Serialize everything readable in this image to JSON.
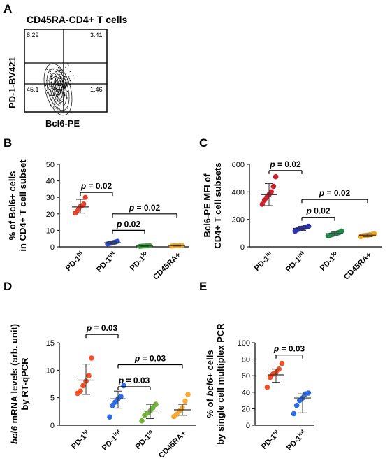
{
  "flow": {
    "panel": "A",
    "title": "CD45RA-CD4+ T cells",
    "ylabel": "PD-1-BV421",
    "xlabel": "Bcl6-PE",
    "quadrants": {
      "top_left": "8.29",
      "top_right": "3.41",
      "bottom_left": "45.1",
      "bottom_right": "1.46"
    }
  },
  "chart_data": [
    {
      "panel": "B",
      "type": "scatter",
      "ylabel_lines": [
        "% of Bcl6+ cells",
        "in CD4+ T cell subset"
      ],
      "ylim": [
        0,
        50
      ],
      "yticks": [
        0,
        10,
        20,
        30,
        40,
        50
      ],
      "categories": [
        "PD-1hi",
        "PD-1int",
        "PD-1lo",
        "CD45RA+"
      ],
      "category_labels": [
        [
          "PD-1",
          "hi"
        ],
        [
          "PD-1",
          "int"
        ],
        [
          "PD-1",
          "lo"
        ],
        [
          "CD45RA+",
          ""
        ]
      ],
      "colors": [
        "#e8402a",
        "#2a4bd7",
        "#3ea33e",
        "#f5a623"
      ],
      "points": [
        [
          20.5,
          21.5,
          23,
          24.5,
          25,
          26,
          30
        ],
        [
          1.8,
          2.0,
          2.2,
          2.5,
          2.7,
          3.0,
          3.4
        ],
        [
          0.3,
          0.4,
          0.5,
          0.5,
          0.6,
          0.6,
          0.7
        ],
        [
          0.5,
          0.6,
          0.7,
          0.8,
          0.8,
          0.9,
          1.0
        ]
      ],
      "mean": [
        24.2,
        2.5,
        0.5,
        0.8
      ],
      "err_low": [
        20.5,
        1.8,
        0.3,
        0.5
      ],
      "err_high": [
        28.8,
        3.3,
        0.7,
        1.1
      ],
      "comparisons": [
        {
          "from": 0,
          "to": 1,
          "label": "p = 0.02",
          "y": 33
        },
        {
          "from": 1,
          "to": 3,
          "label": "p = 0.02",
          "y": 20
        },
        {
          "from": 1,
          "to": 2,
          "label": "p  0.02",
          "y": 10
        }
      ]
    },
    {
      "panel": "C",
      "type": "scatter",
      "ylabel_lines": [
        "Bcl6-PE MFI of",
        "CD4+ T cell subsets"
      ],
      "ylim": [
        0,
        600
      ],
      "yticks": [
        0,
        200,
        400,
        600
      ],
      "categories": [
        "PD-1hi",
        "PD-1int",
        "PD-1lo",
        "CD45RA+"
      ],
      "category_labels": [
        [
          "PD-1",
          "hi"
        ],
        [
          "PD-1",
          "int"
        ],
        [
          "PD-1",
          "lo"
        ],
        [
          "CD45RA+",
          ""
        ]
      ],
      "colors": [
        "#c81f2d",
        "#2a35b5",
        "#1f8a4c",
        "#f5a623"
      ],
      "points": [
        [
          310,
          340,
          360,
          380,
          400,
          440,
          510
        ],
        [
          115,
          125,
          130,
          135,
          140,
          145,
          150
        ],
        [
          80,
          85,
          90,
          95,
          100,
          105,
          115
        ],
        [
          75,
          80,
          82,
          85,
          88,
          90,
          95
        ]
      ],
      "mean": [
        380,
        135,
        96,
        85
      ],
      "err_low": [
        300,
        120,
        80,
        75
      ],
      "err_high": [
        460,
        150,
        112,
        95
      ],
      "comparisons": [
        {
          "from": 0,
          "to": 1,
          "label": "p = 0.02",
          "y": 555
        },
        {
          "from": 1,
          "to": 3,
          "label": "p = 0.02",
          "y": 345
        },
        {
          "from": 1,
          "to": 2,
          "label": "p  0.02",
          "y": 215
        }
      ]
    },
    {
      "panel": "D",
      "type": "scatter",
      "ylabel_lines": [
        "bcl6 mRNA levels (arb. unit)",
        "by RT-qPCR"
      ],
      "ylim": [
        0,
        15
      ],
      "yticks": [
        0,
        5,
        10,
        15
      ],
      "categories": [
        "PD-1hi",
        "PD-1int",
        "PD-1lo",
        "CD45RA+"
      ],
      "category_labels": [
        [
          "PD-1",
          "hi"
        ],
        [
          "PD-1",
          "int"
        ],
        [
          "PD-1",
          "lo"
        ],
        [
          "CD45RA+",
          ""
        ]
      ],
      "colors": [
        "#f04e23",
        "#2a6be8",
        "#73b33a",
        "#f7a934"
      ],
      "points": [
        [
          5.8,
          6.2,
          7.2,
          8.0,
          9.0,
          12.2
        ],
        [
          1.5,
          3.6,
          4.2,
          4.8,
          5.2,
          7.2
        ],
        [
          0.8,
          1.8,
          2.2,
          2.6,
          3.2,
          3.8
        ],
        [
          1.6,
          2.0,
          2.6,
          3.2,
          4.4,
          5.6
        ]
      ],
      "mean": [
        8.2,
        4.8,
        2.6,
        2.8
      ],
      "err_low": [
        5.6,
        3.1,
        1.2,
        1.8
      ],
      "err_high": [
        11.1,
        6.2,
        3.8,
        3.8
      ],
      "comparisons": [
        {
          "from": 0,
          "to": 1,
          "label": "p = 0.03",
          "y": 16.5
        },
        {
          "from": 1,
          "to": 3,
          "label": "p = 0.03",
          "y": 11.0
        },
        {
          "from": 1,
          "to": 2,
          "label": "p = 0.03",
          "y": 7.0
        }
      ]
    },
    {
      "panel": "E",
      "type": "scatter",
      "ylabel_lines": [
        "% of bcl6+ cells",
        "by single cell multiplex PCR"
      ],
      "ylim": [
        0,
        100
      ],
      "yticks": [
        0,
        20,
        40,
        60,
        80,
        100
      ],
      "categories": [
        "PD-1hi",
        "PD-1int"
      ],
      "category_labels": [
        [
          "PD-1",
          "hi"
        ],
        [
          "PD-1",
          "int"
        ]
      ],
      "colors": [
        "#f04e23",
        "#2a6be8"
      ],
      "points": [
        [
          46,
          58,
          62,
          64,
          68,
          75
        ],
        [
          14,
          24,
          30,
          33,
          38,
          39
        ]
      ],
      "mean": [
        61,
        33
      ],
      "err_low": [
        52,
        15
      ],
      "err_high": [
        68,
        38
      ],
      "comparisons": [
        {
          "from": 0,
          "to": 1,
          "label": "p = 0.03",
          "y": 85
        }
      ]
    }
  ]
}
